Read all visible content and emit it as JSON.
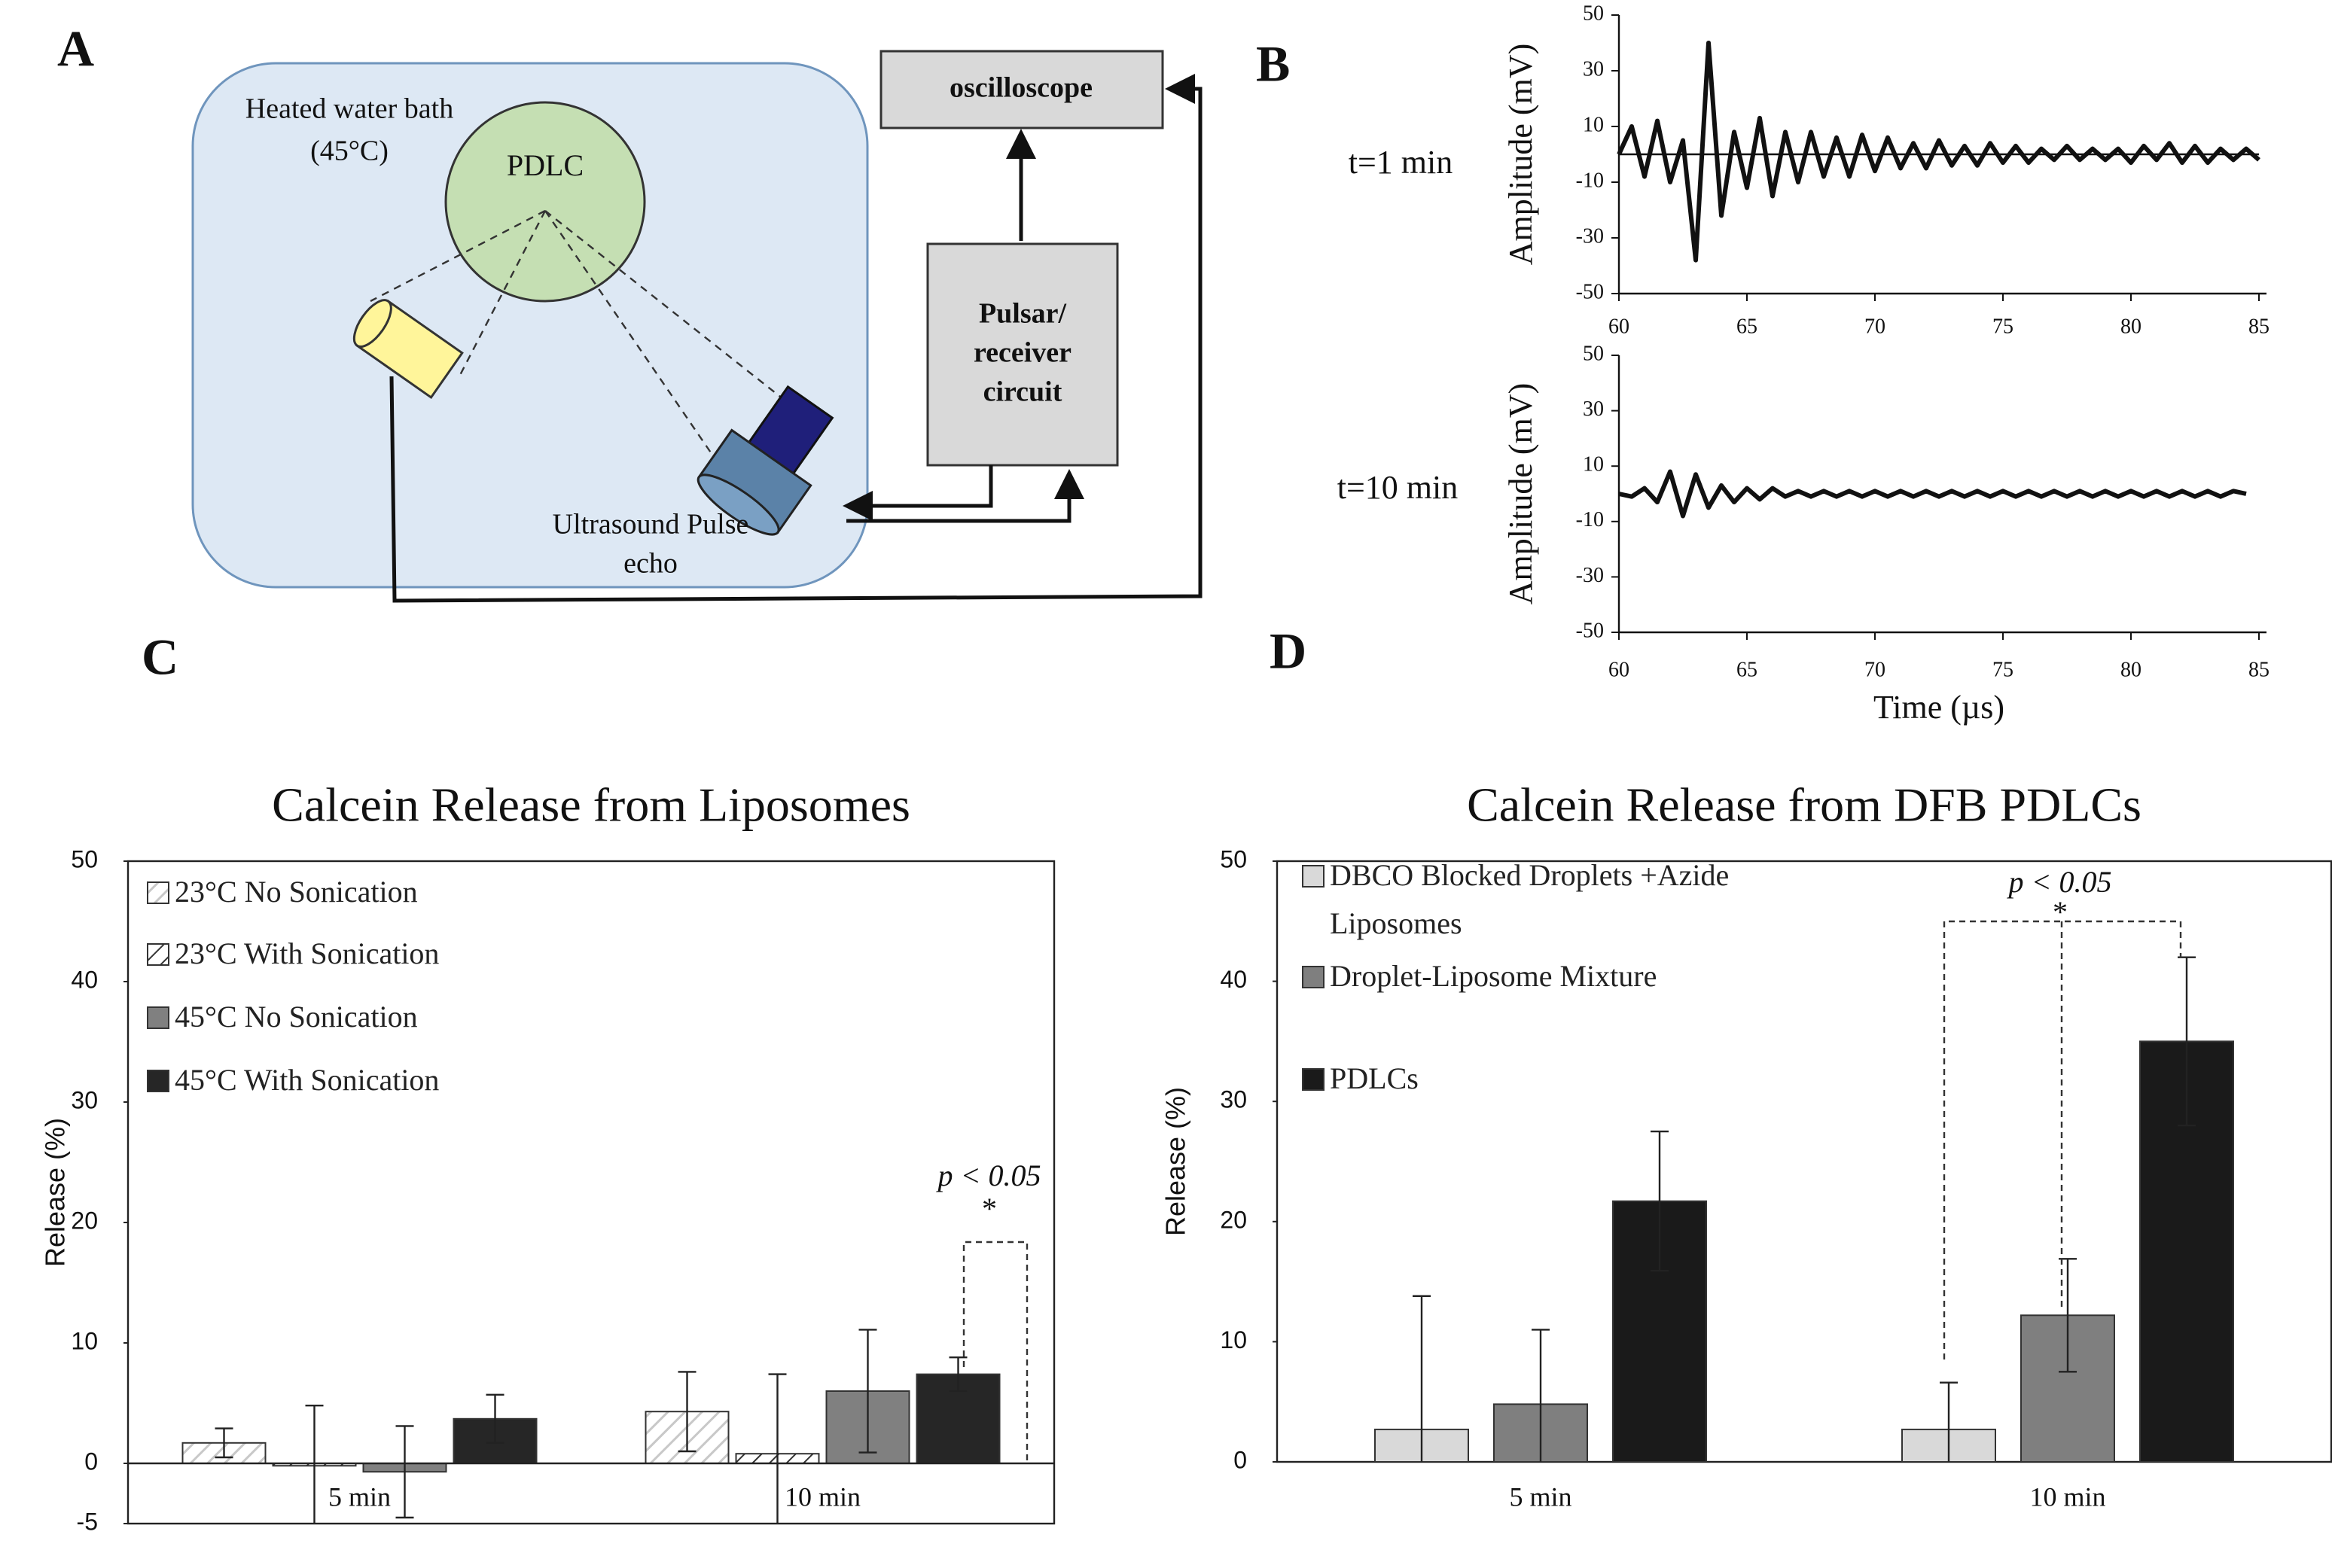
{
  "panels": [
    "A",
    "B",
    "C",
    "D"
  ],
  "diagram": {
    "bath": [
      "Heated water bath",
      "(45°C)"
    ],
    "pdlc": "PDLC",
    "oscilloscope": "oscilloscope",
    "pulser": [
      "Pulsar/",
      "receiver",
      "circuit"
    ],
    "transducer": [
      "Ultrasound Pulse",
      "echo"
    ]
  },
  "chart_data": [
    {
      "type": "line",
      "annotation": "t=1 min",
      "y_label": "Amplitude (mV)",
      "color": "#111111",
      "zero_line": true,
      "xlim": [
        60,
        85
      ],
      "xticks": [
        60,
        65,
        70,
        75,
        80,
        85
      ],
      "ylim": [
        -50,
        50
      ],
      "yticks": [
        -50,
        -30,
        -10,
        10,
        30,
        50
      ],
      "x": [
        60,
        60.5,
        61,
        61.5,
        62,
        62.5,
        63,
        63.5,
        64,
        64.5,
        65,
        65.5,
        66,
        66.5,
        67,
        67.5,
        68,
        68.5,
        69,
        69.5,
        70,
        70.5,
        71,
        71.5,
        72,
        72.5,
        73,
        73.5,
        74,
        74.5,
        75,
        75.5,
        76,
        76.5,
        77,
        77.5,
        78,
        78.5,
        79,
        79.5,
        80,
        80.5,
        81,
        81.5,
        82,
        82.5,
        83,
        83.5,
        84,
        84.5,
        85
      ],
      "values": [
        0,
        10,
        -8,
        12,
        -10,
        5,
        -38,
        40,
        -22,
        8,
        -12,
        13,
        -15,
        8,
        -10,
        8,
        -8,
        6,
        -8,
        7,
        -6,
        6,
        -5,
        4,
        -5,
        5,
        -4,
        3,
        -4,
        4,
        -3,
        3,
        -3,
        2,
        -2,
        3,
        -2,
        2,
        -2,
        2,
        -3,
        3,
        -2,
        4,
        -3,
        3,
        -3,
        2,
        -2,
        2,
        -2
      ]
    },
    {
      "type": "line",
      "annotation": "t=10 min",
      "y_label": "Amplitude (mV)",
      "x_label": "Time (µs)",
      "color": "#111111",
      "zero_line": false,
      "xlim": [
        60,
        85
      ],
      "xticks": [
        60,
        65,
        70,
        75,
        80,
        85
      ],
      "ylim": [
        -50,
        50
      ],
      "yticks": [
        -50,
        -30,
        -10,
        10,
        30,
        50
      ],
      "x": [
        60,
        60.5,
        61,
        61.5,
        62,
        62.5,
        63,
        63.5,
        64,
        64.5,
        65,
        65.5,
        66,
        66.5,
        67,
        67.5,
        68,
        68.5,
        69,
        69.5,
        70,
        70.5,
        71,
        71.5,
        72,
        72.5,
        73,
        73.5,
        74,
        74.5,
        75,
        75.5,
        76,
        76.5,
        77,
        77.5,
        78,
        78.5,
        79,
        79.5,
        80,
        80.5,
        81,
        81.5,
        82,
        82.5,
        83,
        83.5,
        84,
        84.5
      ],
      "values": [
        0,
        -1,
        2,
        -3,
        8,
        -8,
        7,
        -5,
        3,
        -3,
        2,
        -2,
        2,
        -1,
        1,
        -1,
        1,
        -1,
        1,
        -1,
        1,
        -1,
        1,
        -1,
        1,
        -1,
        1,
        -1,
        1,
        -1,
        1,
        -1,
        1,
        -1,
        1,
        -1,
        1,
        -1,
        1,
        -1,
        1,
        -1,
        1,
        -1,
        1,
        -1,
        1,
        -1,
        1,
        0
      ]
    },
    {
      "type": "bar",
      "title": "Calcein Release from Liposomes",
      "y_label": "Release (%)",
      "categories": [
        "5 min",
        "10 min"
      ],
      "ylim": [
        -5,
        50
      ],
      "yticks": [
        -5,
        0,
        10,
        20,
        30,
        40,
        50
      ],
      "legend": "top-left",
      "annotations": [
        "p < 0.05",
        "*"
      ],
      "series": [
        {
          "name": "23°C  No Sonication",
          "color": "#ffffff",
          "hatch": "#c8c8c8",
          "values": [
            1.7,
            4.3
          ],
          "errors": [
            1.2,
            3.3
          ]
        },
        {
          "name": "23°C  With Sonication",
          "color": "#ffffff",
          "hatch": "#333333",
          "values": [
            -0.2,
            0.8
          ],
          "errors": [
            5.0,
            6.6
          ]
        },
        {
          "name": "45°C  No Sonication",
          "color": "#808080",
          "values": [
            -0.7,
            6.0
          ],
          "errors": [
            3.8,
            5.1
          ]
        },
        {
          "name": "45°C  With Sonication",
          "color": "#262626",
          "values": [
            3.7,
            7.4
          ],
          "errors": [
            2.0,
            1.4
          ]
        }
      ]
    },
    {
      "type": "bar",
      "title": "Calcein Release from DFB PDLCs",
      "y_label": "Release (%)",
      "categories": [
        "5 min",
        "10 min"
      ],
      "ylim": [
        0,
        50
      ],
      "yticks": [
        0,
        10,
        20,
        30,
        40,
        50
      ],
      "legend": "top-left",
      "annotations": [
        "p < 0.05",
        "*"
      ],
      "series": [
        {
          "name": "DBCO Blocked Droplets +Azide Liposomes",
          "color": "#d9d9d9",
          "values": [
            2.7,
            2.7
          ],
          "errors": [
            11.1,
            3.9
          ]
        },
        {
          "name": "Droplet-Liposome Mixture",
          "color": "#7f7f7f",
          "values": [
            4.8,
            12.2
          ],
          "errors": [
            6.2,
            4.7
          ]
        },
        {
          "name": "PDLCs",
          "color": "#1a1a1a",
          "values": [
            21.7,
            35.0
          ],
          "errors": [
            5.8,
            7.0
          ]
        }
      ]
    }
  ]
}
